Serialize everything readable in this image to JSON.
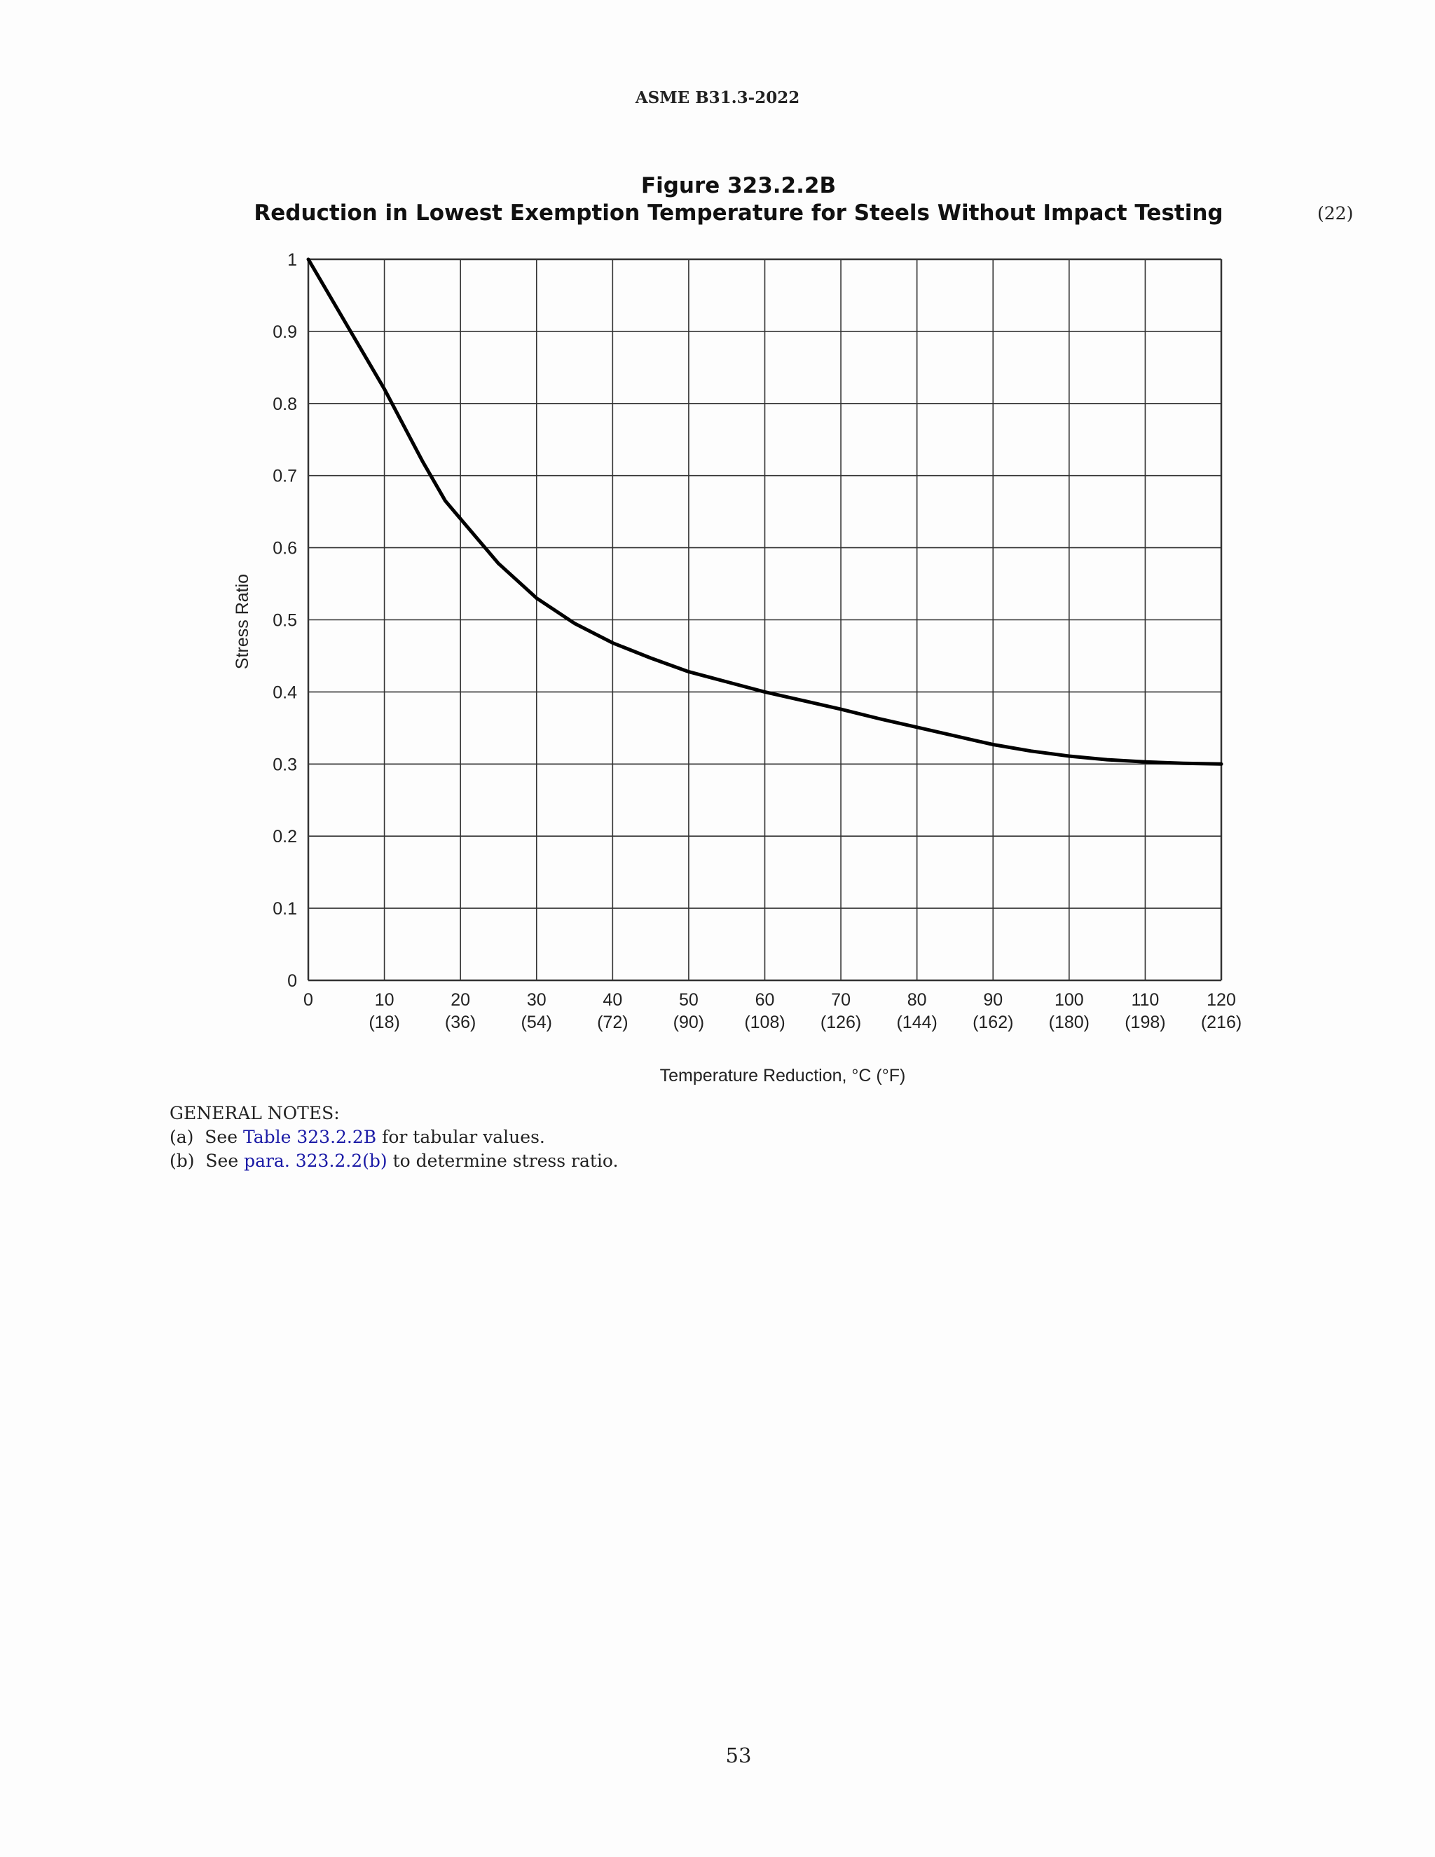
{
  "page": {
    "header": "ASME B31.3-2022",
    "figure_number": "Figure 323.2.2B",
    "figure_title": "Reduction in Lowest Exemption Temperature for Steels Without Impact Testing",
    "revision_mark": "(22)",
    "page_number": "53"
  },
  "notes": {
    "heading": "GENERAL NOTES:",
    "a": {
      "prefix": "(a)  See ",
      "link": "Table 323.2.2B",
      "suffix": " for tabular values."
    },
    "b": {
      "prefix": "(b)  See ",
      "link": "para. 323.2.2(b)",
      "suffix": " to determine stress ratio."
    }
  },
  "chart_data": {
    "type": "line",
    "title": "",
    "xlabel": "Temperature Reduction, °C (°F)",
    "ylabel": "Stress Ratio",
    "xlim": [
      0,
      120
    ],
    "ylim": [
      0,
      1
    ],
    "grid": true,
    "x_ticks": [
      "0",
      "10",
      "20",
      "30",
      "40",
      "50",
      "60",
      "70",
      "80",
      "90",
      "100",
      "110",
      "120"
    ],
    "x_ticks_secondary": [
      "",
      "(18)",
      "(36)",
      "(54)",
      "(72)",
      "(90)",
      "(108)",
      "(126)",
      "(144)",
      "(162)",
      "(180)",
      "(198)",
      "(216)"
    ],
    "y_ticks": [
      "0",
      "0.1",
      "0.2",
      "0.3",
      "0.4",
      "0.5",
      "0.6",
      "0.7",
      "0.8",
      "0.9",
      "1"
    ],
    "series": [
      {
        "x": [
          0,
          5,
          10,
          15,
          18,
          20,
          25,
          30,
          35,
          40,
          45,
          50,
          55,
          60,
          65,
          70,
          75,
          80,
          85,
          90,
          95,
          100,
          105,
          110,
          115,
          120
        ],
        "values": [
          1.0,
          0.91,
          0.82,
          0.72,
          0.665,
          0.64,
          0.578,
          0.53,
          0.495,
          0.468,
          0.447,
          0.428,
          0.414,
          0.4,
          0.388,
          0.376,
          0.363,
          0.351,
          0.339,
          0.327,
          0.318,
          0.311,
          0.306,
          0.303,
          0.301,
          0.3
        ]
      }
    ]
  }
}
